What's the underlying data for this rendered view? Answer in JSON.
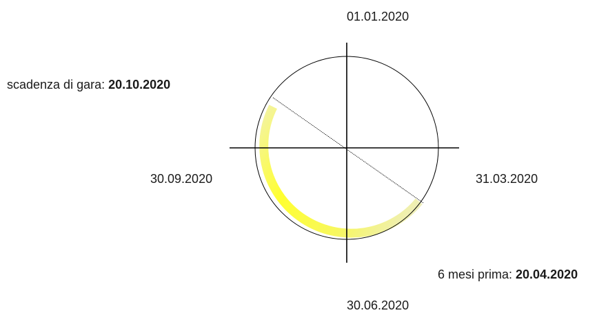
{
  "labels": {
    "top": "01.01.2020",
    "right": "31.03.2020",
    "bottom": "30.06.2020",
    "left": "30.09.2020"
  },
  "deadline": {
    "prefix": "scadenza di gara: ",
    "date": "20.10.2020"
  },
  "six_months": {
    "prefix": "6 mesi prima: ",
    "date": "20.04.2020"
  },
  "colors": {
    "arc_strong": "#ffff33",
    "arc_light": "#eeeeaa",
    "circle": "#000000"
  }
}
